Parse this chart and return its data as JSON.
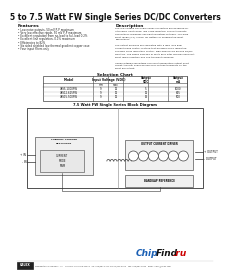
{
  "title": "5 to 7.5 Watt FW Single Series DC/DC Converters",
  "bg_color": "#ffffff",
  "features_title": "Features",
  "features": [
    "Low noise outputs, 50 mV P-P maximum",
    "Very low effective ripple, 50 mV P-P maximum",
    "Excellent regulation from no-load to full-load 0.2%",
    "Excellent line regulation, 0.1% maximum",
    "Efficiencies to 82%",
    "Six sided shielded low thermal gradient copper case",
    "Four input filters only"
  ],
  "description_title": "Description",
  "description_lines": [
    "The low voltage FW single series converters are designed for",
    "ultra wide input range, low noise industrial and instruments",
    "applications requiring low input operating voltages. The wide",
    "input range (2:1) is ideal for battery or unregulated input",
    "applications.",
    " ",
    "The output modules are regulated with a high loop gain",
    "current mode control method that provides noise regulated",
    "dynamic cross regulation control, high efficiencies among DC/DC",
    "isolators. The single package of multi pole filter squares excellent",
    "input ripple rejection and fine transient response.",
    " ",
    "Undervoltage/overvoltage and over-temperature output short",
    "circuit, thermal overload and over-voltage transients on the",
    "input are output."
  ],
  "table_title": "Selection Chart",
  "table_rows": [
    [
      "48S5.1000FW",
      "9",
      "12",
      "5",
      "1000"
    ],
    [
      "48S12.625FW",
      "9",
      "12",
      "12",
      "625"
    ],
    [
      "48S15.500FW",
      "9",
      "12",
      "15",
      "500"
    ]
  ],
  "block_diagram_title": "7.5 Watt FW Single Series Block Diagram",
  "footer_logo": "CALEX",
  "footer_text": "Manufacturing Company, Inc.   Concord, California 94518   Ph: 925/687-4411 or 800/542-3355   Fax: 925/687-3333   Email: sales@calex.com",
  "chipfind_color_chip": "#1a5fb4",
  "chipfind_color_find": "#111111",
  "chipfind_color_ru": "#cc0000",
  "chipfind_dot_color": "#cc0000"
}
